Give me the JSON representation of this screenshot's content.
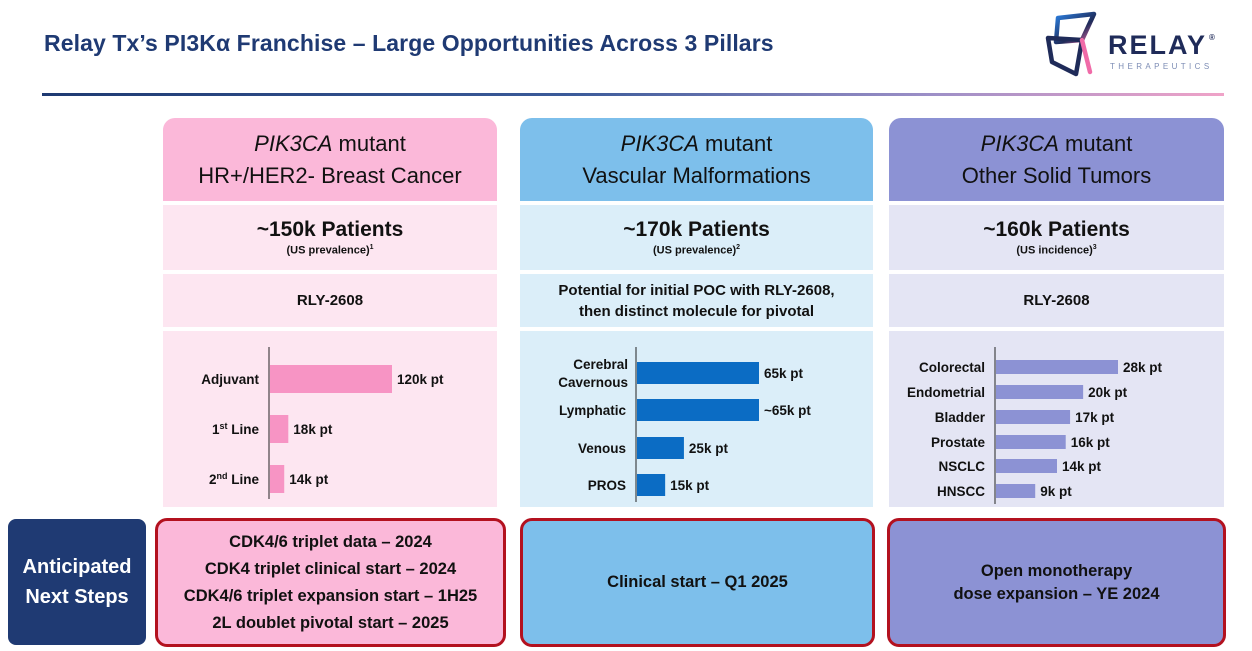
{
  "title": "Relay Tx’s PI3Kα Franchise – Large Opportunities Across 3 Pillars",
  "logo": {
    "word": "RELAY",
    "registered": "®",
    "subtitle": "THERAPEUTICS"
  },
  "colors": {
    "navy": "#1f3a73",
    "pink_header": "#fbb8d9",
    "pink_light": "#fde6f1",
    "pink_bar": "#f794c4",
    "blue_header": "#7dbfeb",
    "blue_light": "#dbeef9",
    "blue_bar": "#0b6cc4",
    "purple_header": "#8c92d4",
    "purple_light": "#e4e5f4",
    "purple_bar": "#8c92d4",
    "red_border": "#b3111f"
  },
  "columns": [
    {
      "header_italic": "PIK3CA",
      "header_rest": " mutant",
      "header_line2": "HR+/HER2- Breast Cancer",
      "patients": "~150k Patients",
      "patients_sub": "(US prevalence)",
      "patients_sup": "1",
      "molecule": "RLY-2608",
      "molecule_line2": "",
      "steps": [
        "CDK4/6 triplet data – 2024",
        "CDK4 triplet clinical start – 2024",
        "CDK4/6 triplet expansion start – 1H25",
        "2L doublet pivotal start – 2025"
      ]
    },
    {
      "header_italic": "PIK3CA",
      "header_rest": " mutant",
      "header_line2": "Vascular Malformations",
      "patients": "~170k Patients",
      "patients_sub": "(US prevalence)",
      "patients_sup": "2",
      "molecule": "Potential for initial POC with RLY-2608,",
      "molecule_line2": "then distinct molecule for pivotal",
      "steps": [
        "Clinical start – Q1 2025"
      ]
    },
    {
      "header_italic": "PIK3CA",
      "header_rest": " mutant",
      "header_line2": "Other Solid Tumors",
      "patients": "~160k Patients",
      "patients_sub": "(US incidence)",
      "patients_sup": "3",
      "molecule": "RLY-2608",
      "molecule_line2": "",
      "steps": [
        "Open monotherapy",
        "dose expansion – YE 2024"
      ]
    }
  ],
  "anticipated_label": [
    "Anticipated",
    "Next Steps"
  ],
  "chart_data": [
    {
      "type": "bar",
      "orientation": "horizontal",
      "categories": [
        {
          "text": "Adjuvant",
          "sup": "",
          "rest": ""
        },
        {
          "text": "1",
          "sup": "st",
          "rest": " Line"
        },
        {
          "text": "2",
          "sup": "nd",
          "rest": " Line"
        }
      ],
      "values": [
        120,
        18,
        14
      ],
      "value_labels": [
        "120k pt",
        "18k pt",
        "14k pt"
      ],
      "unit": "k pt",
      "color": "#f794c4"
    },
    {
      "type": "bar",
      "orientation": "horizontal",
      "categories": [
        {
          "text": "Cerebral",
          "line2": "Cavernous"
        },
        {
          "text": "Lymphatic"
        },
        {
          "text": "Venous"
        },
        {
          "text": "PROS"
        }
      ],
      "values": [
        65,
        65,
        25,
        15
      ],
      "value_labels": [
        "65k pt",
        "~65k pt",
        "25k pt",
        "15k pt"
      ],
      "unit": "k pt",
      "color": "#0b6cc4"
    },
    {
      "type": "bar",
      "orientation": "horizontal",
      "categories": [
        {
          "text": "Colorectal"
        },
        {
          "text": "Endometrial"
        },
        {
          "text": "Bladder"
        },
        {
          "text": "Prostate"
        },
        {
          "text": "NSCLC"
        },
        {
          "text": "HNSCC"
        }
      ],
      "values": [
        28,
        20,
        17,
        16,
        14,
        9
      ],
      "value_labels": [
        "28k pt",
        "20k pt",
        "17k pt",
        "16k pt",
        "14k pt",
        "9k pt"
      ],
      "unit": "k pt",
      "color": "#8c92d4"
    }
  ]
}
